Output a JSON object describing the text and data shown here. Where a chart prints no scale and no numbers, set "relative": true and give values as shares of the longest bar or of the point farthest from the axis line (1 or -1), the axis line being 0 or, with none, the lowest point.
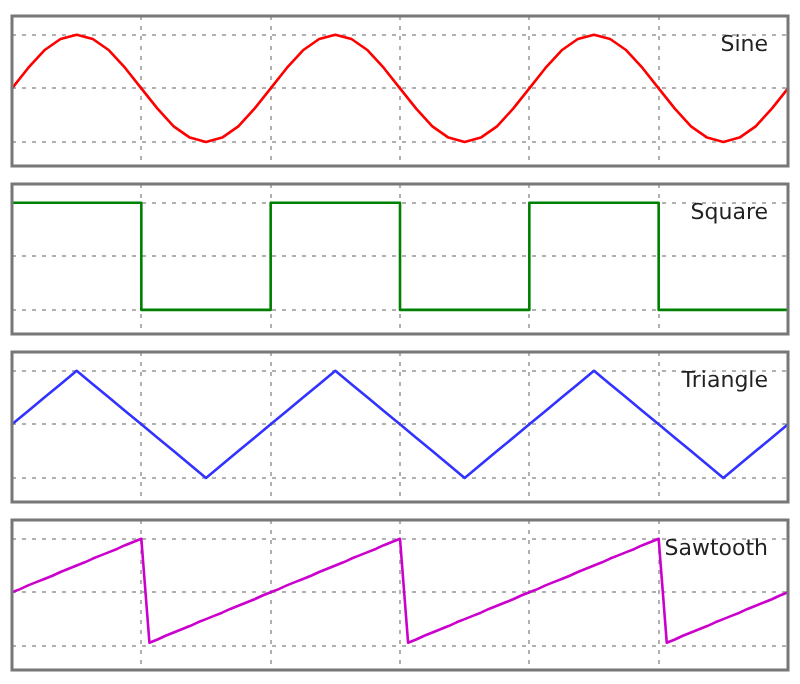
{
  "chart_data": [
    {
      "type": "line",
      "title": "Sine",
      "relative": true,
      "grid": true,
      "categories": [
        null,
        null,
        null,
        null,
        null,
        null,
        null,
        null,
        null,
        null,
        null,
        null,
        null,
        null,
        null,
        null,
        null,
        null,
        null,
        null,
        null,
        null,
        null,
        null,
        null,
        null,
        null,
        null,
        null,
        null,
        null,
        null,
        null,
        null,
        null,
        null,
        null,
        null,
        null,
        null,
        null,
        null,
        null,
        null,
        null,
        null,
        null,
        null,
        null
      ],
      "series": [
        {
          "color": "#ff0000",
          "values": [
            0,
            0.38,
            0.71,
            0.92,
            1,
            0.92,
            0.71,
            0.38,
            0,
            -0.38,
            -0.71,
            -0.92,
            -1,
            -0.92,
            -0.71,
            -0.38,
            0,
            0.38,
            0.71,
            0.92,
            1,
            0.92,
            0.71,
            0.38,
            0,
            -0.38,
            -0.71,
            -0.92,
            -1,
            -0.92,
            -0.71,
            -0.38,
            0,
            0.38,
            0.71,
            0.92,
            1,
            0.92,
            0.71,
            0.38,
            0,
            -0.38,
            -0.71,
            -0.92,
            -1,
            -0.92,
            -0.71,
            -0.38,
            0
          ]
        }
      ]
    },
    {
      "type": "step",
      "title": "Square",
      "relative": true,
      "grid": true,
      "categories": [
        null,
        null,
        null,
        null,
        null,
        null,
        null
      ],
      "series": [
        {
          "color": "#008000",
          "values": [
            1,
            -1,
            1,
            -1,
            1,
            -1,
            -1
          ]
        }
      ]
    },
    {
      "type": "line",
      "title": "Triangle",
      "relative": true,
      "grid": true,
      "categories": [
        null,
        null,
        null,
        null,
        null,
        null,
        null,
        null,
        null,
        null,
        null,
        null,
        null,
        null,
        null,
        null,
        null,
        null,
        null,
        null,
        null,
        null,
        null,
        null,
        null,
        null,
        null,
        null,
        null,
        null,
        null,
        null,
        null,
        null,
        null,
        null,
        null,
        null,
        null,
        null,
        null,
        null,
        null,
        null,
        null,
        null,
        null,
        null,
        null
      ],
      "series": [
        {
          "color": "#3333ff",
          "values": [
            0,
            0.25,
            0.5,
            0.75,
            1,
            0.75,
            0.5,
            0.25,
            0,
            -0.25,
            -0.5,
            -0.75,
            -1,
            -0.75,
            -0.5,
            -0.25,
            0,
            0.25,
            0.5,
            0.75,
            1,
            0.75,
            0.5,
            0.25,
            0,
            -0.25,
            -0.5,
            -0.75,
            -1,
            -0.75,
            -0.5,
            -0.25,
            0,
            0.25,
            0.5,
            0.75,
            1,
            0.75,
            0.5,
            0.25,
            0,
            -0.25,
            -0.5,
            -0.75,
            -1,
            -0.75,
            -0.5,
            -0.25,
            0
          ]
        }
      ]
    },
    {
      "type": "line",
      "title": "Sawtooth",
      "relative": true,
      "grid": true,
      "categories": [
        null,
        null,
        null,
        null,
        null,
        null,
        null,
        null,
        null,
        null,
        null,
        null,
        null,
        null,
        null,
        null,
        null,
        null,
        null,
        null,
        null,
        null,
        null,
        null,
        null,
        null,
        null,
        null,
        null,
        null,
        null,
        null,
        null,
        null,
        null,
        null,
        null,
        null,
        null,
        null,
        null,
        null,
        null,
        null,
        null,
        null,
        null,
        null,
        null,
        null,
        null,
        null,
        null,
        null,
        null,
        null,
        null,
        null,
        null,
        null,
        null,
        null,
        null,
        null,
        null,
        null,
        null,
        null,
        null,
        null,
        null,
        null,
        null,
        null,
        null,
        null,
        null,
        null,
        null,
        null,
        null,
        null,
        null,
        null,
        null,
        null,
        null,
        null,
        null,
        null,
        null,
        null,
        null,
        null,
        null,
        null,
        null
      ],
      "series": [
        {
          "color": "#cc00cc",
          "values": [
            0,
            0.06,
            0.13,
            0.19,
            0.25,
            0.31,
            0.38,
            0.44,
            0.5,
            0.56,
            0.63,
            0.69,
            0.75,
            0.81,
            0.88,
            0.94,
            1,
            -0.94,
            -0.88,
            -0.81,
            -0.75,
            -0.69,
            -0.63,
            -0.56,
            -0.5,
            -0.44,
            -0.38,
            -0.31,
            -0.25,
            -0.19,
            -0.13,
            -0.06,
            0,
            0.06,
            0.13,
            0.19,
            0.25,
            0.31,
            0.38,
            0.44,
            0.5,
            0.56,
            0.63,
            0.69,
            0.75,
            0.81,
            0.88,
            0.94,
            1,
            -0.94,
            -0.88,
            -0.81,
            -0.75,
            -0.69,
            -0.63,
            -0.56,
            -0.5,
            -0.44,
            -0.38,
            -0.31,
            -0.25,
            -0.19,
            -0.13,
            -0.06,
            0,
            0.06,
            0.13,
            0.19,
            0.25,
            0.31,
            0.38,
            0.44,
            0.5,
            0.56,
            0.63,
            0.69,
            0.75,
            0.81,
            0.88,
            0.94,
            1,
            -0.94,
            -0.88,
            -0.81,
            -0.75,
            -0.69,
            -0.63,
            -0.56,
            -0.5,
            -0.44,
            -0.38,
            -0.31,
            -0.25,
            -0.19,
            -0.13,
            -0.06,
            0
          ]
        }
      ]
    }
  ]
}
